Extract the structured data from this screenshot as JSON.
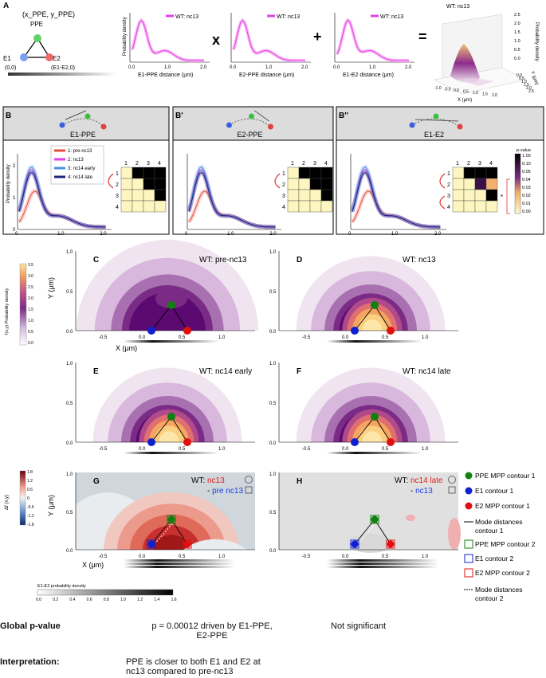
{
  "panelA": {
    "letter": "A",
    "ppe_coord": "(x_PPE, y_PPE)",
    "ppe_label": "PPE",
    "e1_label": "E1",
    "e1_coord": "(0,0)",
    "e2_label": "E2",
    "e2_coord": "(E1-E2,0)",
    "plots": [
      {
        "xlabel": "E1-PPE distance (μm)",
        "ylabel": "Probability density",
        "legend": "WT: nc13",
        "ticks": [
          "0.0",
          "1.0",
          "2.0"
        ]
      },
      {
        "xlabel": "E2-PPE distance (μm)",
        "legend": "WT: nc13",
        "ticks": [
          "0.0",
          "1.0",
          "2.0"
        ]
      },
      {
        "xlabel": "E1-E2 distance (μm)",
        "legend": "WT: nc13",
        "ticks": [
          "0.0",
          "1.0",
          "2.0"
        ]
      }
    ],
    "op_times": "x",
    "op_plus": "+",
    "op_equals": "=",
    "surface_title": "WT: nc13",
    "surface_zlabel": "Probability density",
    "surface_zticks": [
      "2.5",
      "2.0",
      "1.5",
      "1.0",
      "0.5",
      "0.0"
    ],
    "surface_xlabel": "X (μm)",
    "surface_xticks": [
      "-1.0",
      "-0.5",
      "0.0",
      "0.5",
      "1.0",
      "1.5",
      "2.0"
    ],
    "surface_ylabel": "Y (μm)",
    "surface_yticks": [
      "0.0",
      "0.5",
      "1.0",
      "1.5",
      "2.0",
      "2.5"
    ]
  },
  "panelB": {
    "panels": [
      {
        "letter": "B",
        "title": "E1-PPE"
      },
      {
        "letter": "B'",
        "title": "E2-PPE"
      },
      {
        "letter": "B''",
        "title": "E1-E2"
      }
    ],
    "ylabel": "Probability density",
    "yticks": [
      "0",
      "1",
      "2"
    ],
    "xticks": [
      "0",
      "1.0",
      "2.0"
    ],
    "legend": [
      "1: pre-nc13",
      "2: nc13",
      "3: nc14 early",
      "4: nc14 late"
    ],
    "matrix_headers": [
      "1",
      "2",
      "3",
      "4"
    ],
    "pvalue_title": "p-value",
    "pvalue_ticks": [
      "1.00",
      "0.10",
      "0.05",
      "0.04",
      "0.03",
      "0.02",
      "0.01",
      "0.00"
    ],
    "star": "*"
  },
  "density_colorbar": {
    "label": "f(x,y) Probability density",
    "ticks": [
      "3.5",
      "3.0",
      "2.5",
      "2.0",
      "1.5",
      "1.0",
      "0.5",
      "0.0"
    ]
  },
  "contour_panels": [
    {
      "letter": "C",
      "title": "WT: pre-nc13"
    },
    {
      "letter": "D",
      "title": "WT: nc13"
    },
    {
      "letter": "E",
      "title": "WT: nc14 early"
    },
    {
      "letter": "F",
      "title": "WT: nc14 late"
    }
  ],
  "axis": {
    "xlabel": "X (μm)",
    "ylabel": "Y (μm)",
    "xticks": [
      "-0.5",
      "0.0",
      "0.5",
      "1.0"
    ],
    "yticks": [
      "0.0",
      "0.5",
      "1.0"
    ]
  },
  "diff_colorbar": {
    "label": "Δf (x,y)",
    "ticks": [
      "1.8",
      "1.2",
      "0.6",
      "0",
      "-0.6",
      "-1.2",
      "-1.8"
    ]
  },
  "diff_panels": [
    {
      "letter": "G",
      "title_prefix": "WT: ",
      "title_a": "nc13",
      "title_b": "pre nc13",
      "minus": "- "
    },
    {
      "letter": "H",
      "title_prefix": "WT: ",
      "title_a": "nc14 late",
      "title_b": "nc13",
      "minus": "- "
    }
  ],
  "contour_legend": [
    "PPE MPP contour 1",
    "E1 contour 1",
    "E2 MPP contour 1",
    "Mode distances",
    "contour 1",
    "PPE MPP contour 2",
    "E1 contour 2",
    "E2 MPP contour 2",
    "Mode distances",
    "contour 2"
  ],
  "e1e2_bar": {
    "label": "E1-E2 probability density",
    "ticks": [
      "0.0",
      "0.2",
      "0.4",
      "0.6",
      "0.8",
      "1.0",
      "1.2",
      "1.4",
      "1.6"
    ]
  },
  "summary": {
    "global_label": "Global p-value",
    "global_g": "p = 0.00012 driven by E1-PPE,",
    "global_g2": "E2-PPE",
    "global_h": "Not significant",
    "interp_label": "Interpretation:",
    "interp_g": "PPE is closer to both E1 and E2 at",
    "interp_g2": "nc13 compared to pre-nc13"
  },
  "colors": {
    "pre": "#e84a3c",
    "nc13": "#e040e6",
    "early": "#4a90e2",
    "late": "#1a237e",
    "red_text": "#e02020",
    "blue_text": "#1f3fe0"
  }
}
